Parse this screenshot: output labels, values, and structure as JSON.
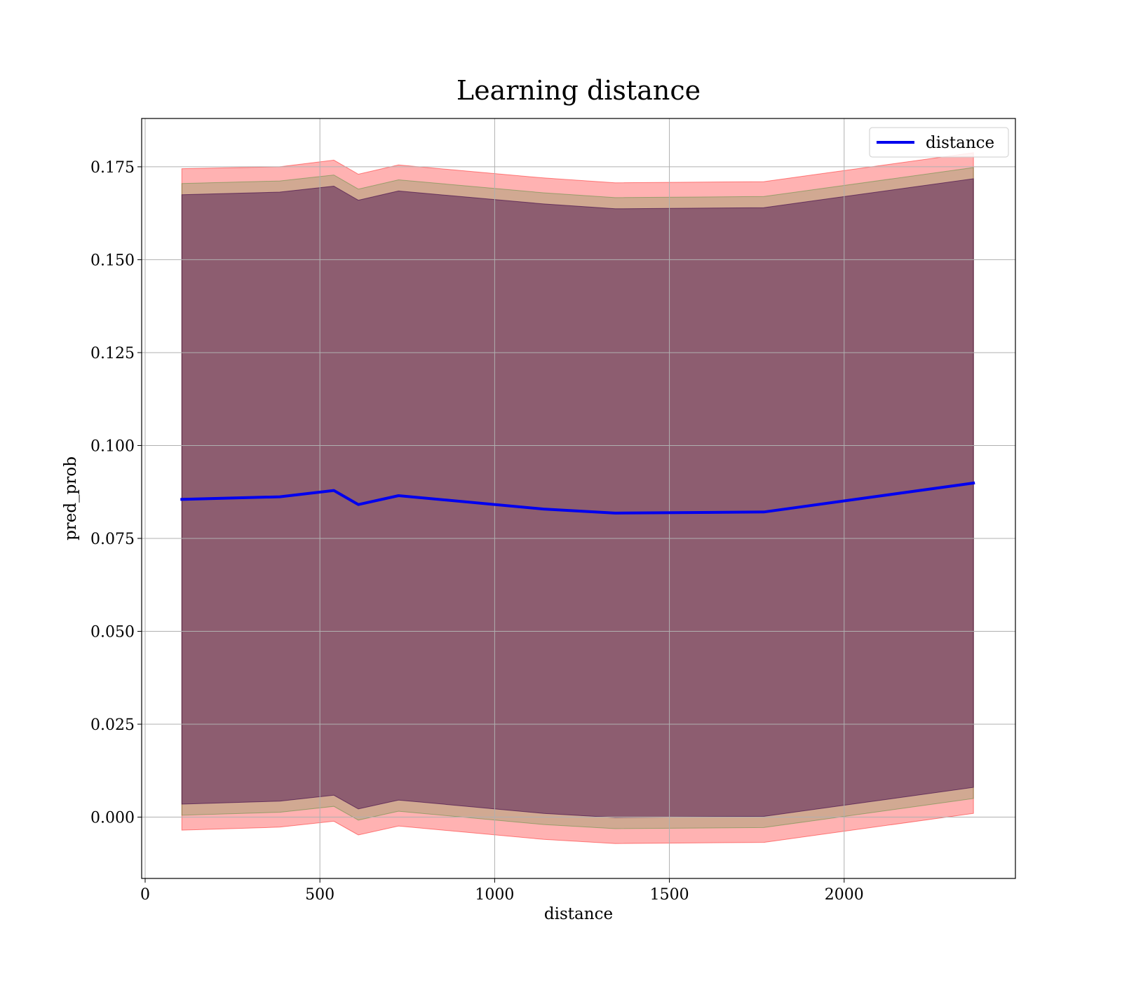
{
  "chart_data": {
    "type": "line",
    "title": "Learning distance",
    "xlabel": "distance",
    "ylabel": "pred_prob",
    "xlim": [
      -10,
      2490
    ],
    "ylim": [
      -0.0165,
      0.188
    ],
    "xticks": [
      0,
      500,
      1000,
      1500,
      2000
    ],
    "xtick_labels": [
      "0",
      "500",
      "1000",
      "1500",
      "2000"
    ],
    "yticks": [
      0.0,
      0.025,
      0.05,
      0.075,
      0.1,
      0.125,
      0.15,
      0.175
    ],
    "ytick_labels": [
      "0.000",
      "0.025",
      "0.050",
      "0.075",
      "0.100",
      "0.125",
      "0.150",
      "0.175"
    ],
    "grid": true,
    "legend": {
      "position": "top-right",
      "entries": [
        "distance"
      ]
    },
    "x": [
      105,
      385,
      540,
      610,
      725,
      1140,
      1345,
      1770,
      2370
    ],
    "series": [
      {
        "name": "distance",
        "color": "#0000ee",
        "values": [
          0.0855,
          0.0862,
          0.0879,
          0.0841,
          0.0865,
          0.0829,
          0.0818,
          0.0821,
          0.0899
        ]
      }
    ],
    "bands": [
      {
        "color": "#ff0000",
        "opacity": 0.3,
        "upper": [
          0.1745,
          0.175,
          0.1768,
          0.173,
          0.1755,
          0.172,
          0.1707,
          0.171,
          0.1788
        ],
        "lower": [
          -0.0035,
          -0.0027,
          -0.0011,
          -0.0048,
          -0.0024,
          -0.006,
          -0.0071,
          -0.0068,
          0.001
        ]
      },
      {
        "color": "#008000",
        "opacity": 0.18,
        "upper": [
          0.1705,
          0.1712,
          0.1728,
          0.169,
          0.1715,
          0.168,
          0.1667,
          0.167,
          0.1748
        ],
        "lower": [
          0.0005,
          0.0013,
          0.0029,
          -0.0008,
          0.0016,
          -0.002,
          -0.0031,
          -0.0028,
          0.005
        ]
      },
      {
        "color": "#3a0046",
        "opacity": 0.45,
        "upper": [
          0.1675,
          0.1682,
          0.1698,
          0.166,
          0.1685,
          0.165,
          0.1637,
          0.164,
          0.1718
        ],
        "lower": [
          0.0035,
          0.0043,
          0.0059,
          0.0022,
          0.0046,
          0.001,
          -0.0001,
          0.0002,
          0.008
        ]
      }
    ]
  }
}
